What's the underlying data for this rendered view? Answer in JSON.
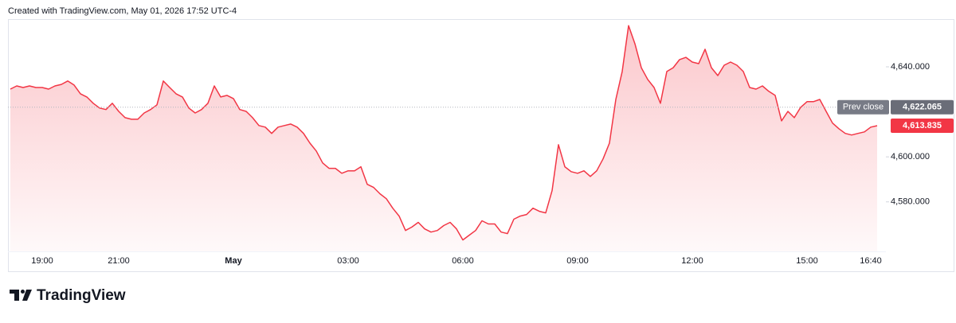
{
  "header": "Created with TradingView.com, May 01, 2026 17:52 UTC-4",
  "brand": "TradingView",
  "chart_data": {
    "type": "area",
    "categories": [
      null,
      null,
      null,
      null,
      null,
      "19:00",
      null,
      null,
      null,
      null,
      null,
      null,
      null,
      null,
      null,
      null,
      null,
      "21:00",
      null,
      null,
      null,
      null,
      null,
      null,
      null,
      null,
      null,
      null,
      null,
      null,
      null,
      null,
      null,
      null,
      null,
      "May",
      null,
      null,
      null,
      null,
      null,
      null,
      null,
      null,
      null,
      null,
      null,
      null,
      null,
      null,
      null,
      null,
      null,
      "03:00",
      null,
      null,
      null,
      null,
      null,
      null,
      null,
      null,
      null,
      null,
      null,
      null,
      null,
      null,
      null,
      null,
      null,
      "06:00",
      null,
      null,
      null,
      null,
      null,
      null,
      null,
      null,
      null,
      null,
      null,
      null,
      null,
      null,
      null,
      null,
      null,
      "09:00",
      null,
      null,
      null,
      null,
      null,
      null,
      null,
      null,
      null,
      null,
      null,
      null,
      null,
      null,
      null,
      null,
      null,
      "12:00",
      null,
      null,
      null,
      null,
      null,
      null,
      null,
      null,
      null,
      null,
      null,
      null,
      null,
      null,
      null,
      null,
      null,
      "15:00",
      null,
      null,
      null,
      null,
      null,
      null,
      null,
      null,
      null,
      "16:40",
      null
    ],
    "series": [
      {
        "color": "#f23645",
        "values": [
          4630.1,
          4631.5,
          4630.8,
          4631.5,
          4630.8,
          4630.8,
          4630.1,
          4631.5,
          4632.2,
          4633.7,
          4631.9,
          4628.0,
          4626.6,
          4623.8,
          4621.7,
          4621.0,
          4623.8,
          4620.2,
          4617.4,
          4616.7,
          4616.7,
          4619.5,
          4621.0,
          4623.1,
          4633.7,
          4630.8,
          4628.0,
          4626.6,
          4621.7,
          4619.5,
          4621.0,
          4623.8,
          4631.5,
          4626.6,
          4627.3,
          4625.9,
          4621.0,
          4620.2,
          4617.4,
          4613.9,
          4613.2,
          4610.4,
          4613.2,
          4613.9,
          4614.6,
          4613.2,
          4610.4,
          4606.1,
          4602.6,
          4597.3,
          4594.9,
          4594.9,
          4592.7,
          4593.8,
          4593.8,
          4595.6,
          4587.8,
          4586.4,
          4583.6,
          4581.4,
          4577.2,
          4573.7,
          4567.3,
          4568.8,
          4570.9,
          4568.0,
          4566.6,
          4567.3,
          4569.5,
          4570.9,
          4568.0,
          4563.1,
          4565.2,
          4567.3,
          4571.6,
          4570.2,
          4570.2,
          4566.6,
          4565.9,
          4572.3,
          4573.7,
          4574.4,
          4577.2,
          4575.8,
          4575.1,
          4585.0,
          4605.4,
          4595.6,
          4593.4,
          4592.7,
          4593.8,
          4591.3,
          4593.8,
          4599.1,
          4606.1,
          4625.5,
          4637.9,
          4658.3,
          4650.2,
          4639.6,
          4634.4,
          4630.8,
          4623.8,
          4637.9,
          4639.6,
          4643.2,
          4644.2,
          4642.1,
          4641.4,
          4647.8,
          4639.6,
          4636.1,
          4640.7,
          4642.1,
          4640.7,
          4637.9,
          4630.8,
          4630.1,
          4631.5,
          4629.1,
          4627.3,
          4616.0,
          4620.2,
          4617.4,
          4622.0,
          4624.5,
          4624.5,
          4625.5,
          4620.2,
          4615.0,
          4612.5,
          4610.4,
          4609.7,
          4610.4,
          4611.1,
          4613.2,
          4613.835
        ]
      }
    ],
    "last_label": "4,613.835",
    "prev_close": {
      "label": "Prev close",
      "value": 4622.065,
      "value_label": "4,622.065"
    },
    "ylim": [
      4558,
      4661.2
    ],
    "yticks": [
      {
        "value": 4580,
        "label": "4,580.000"
      },
      {
        "value": 4600,
        "label": "4,600.000"
      },
      {
        "value": 4640,
        "label": "4,640.000"
      }
    ]
  }
}
